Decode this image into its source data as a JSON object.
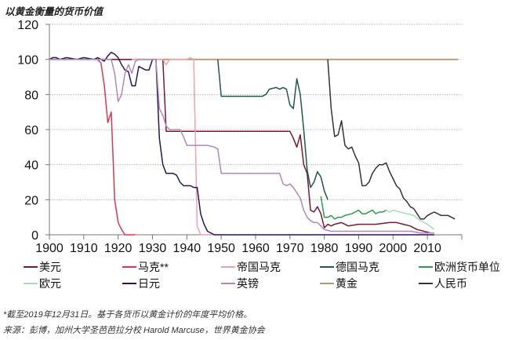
{
  "title": "以黄金衡量的货币价值",
  "notes": [
    "*截至2019年12月31日。基于各货币以黄金计价的年度平均价格。",
    "来源：彭博，加州大学圣芭芭拉分校 Harold Marcuse，世界黄金协会"
  ],
  "legend": [
    {
      "label": "美元",
      "color": "#7a1a2e"
    },
    {
      "label": "马克**",
      "color": "#d8384f"
    },
    {
      "label": "帝国马克",
      "color": "#eaa3ad"
    },
    {
      "label": "德国马克",
      "color": "#1e5a44"
    },
    {
      "label": "欧洲货币单位",
      "color": "#2e9e4e"
    },
    {
      "label": "欧元",
      "color": "#a8dcb4"
    },
    {
      "label": "日元",
      "color": "#2a1657"
    },
    {
      "label": "英镑",
      "color": "#b086c0"
    },
    {
      "label": "黄金",
      "color": "#b39a6a"
    },
    {
      "label": "人民币",
      "color": "#333333"
    }
  ],
  "chart_data": {
    "type": "line",
    "title": "以黄金衡量的货币价值",
    "xlabel": "",
    "ylabel": "",
    "xlim": [
      1900,
      2020
    ],
    "ylim": [
      0,
      120
    ],
    "xticks": [
      1900,
      1910,
      1920,
      1930,
      1940,
      1950,
      1960,
      1970,
      1980,
      1990,
      2000,
      2010
    ],
    "yticks": [
      0,
      20,
      40,
      60,
      80,
      100,
      120
    ],
    "grid": "horizontal dotted",
    "legend_position": "bottom",
    "series": [
      {
        "name": "黄金",
        "color": "#b39a6a",
        "points": [
          [
            1900,
            100
          ],
          [
            2019,
            100
          ]
        ]
      },
      {
        "name": "美元",
        "color": "#7a1a2e",
        "points": [
          [
            1900,
            100
          ],
          [
            1933,
            100
          ],
          [
            1934,
            59
          ],
          [
            1970,
            59
          ],
          [
            1971,
            55
          ],
          [
            1972,
            50
          ],
          [
            1973,
            57
          ],
          [
            1974,
            40
          ],
          [
            1975,
            35
          ],
          [
            1976,
            14
          ],
          [
            1977,
            13
          ],
          [
            1978,
            16
          ],
          [
            1979,
            12
          ],
          [
            1980,
            4
          ],
          [
            1981,
            6
          ],
          [
            1982,
            5
          ],
          [
            1983,
            6
          ],
          [
            1985,
            7
          ],
          [
            1987,
            5
          ],
          [
            1990,
            6
          ],
          [
            1995,
            6
          ],
          [
            1999,
            7
          ],
          [
            2001,
            7
          ],
          [
            2003,
            6
          ],
          [
            2005,
            5
          ],
          [
            2007,
            3
          ],
          [
            2009,
            2
          ],
          [
            2011,
            1
          ]
        ]
      },
      {
        "name": "马克**",
        "color": "#d8384f",
        "points": [
          [
            1900,
            100
          ],
          [
            1914,
            100
          ],
          [
            1915,
            98
          ],
          [
            1916,
            85
          ],
          [
            1917,
            64
          ],
          [
            1918,
            70
          ],
          [
            1919,
            20
          ],
          [
            1920,
            7
          ],
          [
            1921,
            3
          ],
          [
            1922,
            0
          ],
          [
            1925,
            0
          ]
        ]
      },
      {
        "name": "帝国马克",
        "color": "#eaa3ad",
        "points": [
          [
            1924,
            100
          ],
          [
            1933,
            100
          ],
          [
            1934,
            97
          ],
          [
            1935,
            100
          ],
          [
            1939,
            100
          ],
          [
            1940,
            100
          ],
          [
            1941,
            101
          ],
          [
            1942,
            100
          ],
          [
            1943,
            5
          ],
          [
            1944,
            0
          ],
          [
            1948,
            0
          ]
        ]
      },
      {
        "name": "德国马克",
        "color": "#1e5a44",
        "points": [
          [
            1949,
            100
          ],
          [
            1950,
            79
          ],
          [
            1962,
            79
          ],
          [
            1963,
            80
          ],
          [
            1964,
            83
          ],
          [
            1966,
            84
          ],
          [
            1967,
            83
          ],
          [
            1968,
            84
          ],
          [
            1969,
            83
          ],
          [
            1970,
            74
          ],
          [
            1971,
            72
          ],
          [
            1972,
            89
          ],
          [
            1973,
            80
          ],
          [
            1974,
            60
          ],
          [
            1975,
            37
          ],
          [
            1976,
            27
          ],
          [
            1977,
            30
          ],
          [
            1978,
            36
          ],
          [
            1979,
            33
          ],
          [
            1980,
            25
          ],
          [
            1981,
            20
          ]
        ]
      },
      {
        "name": "欧洲货币单位",
        "color": "#2e9e4e",
        "points": [
          [
            1979,
            22
          ],
          [
            1980,
            10
          ],
          [
            1981,
            10
          ],
          [
            1982,
            11
          ],
          [
            1983,
            9
          ],
          [
            1984,
            10
          ],
          [
            1985,
            10
          ],
          [
            1986,
            11
          ],
          [
            1988,
            12
          ],
          [
            1990,
            14
          ],
          [
            1991,
            12
          ],
          [
            1992,
            12
          ],
          [
            1994,
            14
          ],
          [
            1995,
            12
          ],
          [
            1996,
            13
          ],
          [
            1997,
            13
          ],
          [
            1998,
            14
          ]
        ]
      },
      {
        "name": "欧元",
        "color": "#a8dcb4",
        "points": [
          [
            1998,
            14
          ],
          [
            1999,
            13
          ],
          [
            2000,
            14
          ],
          [
            2002,
            13
          ],
          [
            2004,
            12
          ],
          [
            2006,
            11
          ],
          [
            2008,
            8
          ],
          [
            2010,
            6
          ],
          [
            2012,
            3
          ]
        ]
      },
      {
        "name": "日元",
        "color": "#2a1657",
        "points": [
          [
            1900,
            100
          ],
          [
            1901,
            101
          ],
          [
            1902,
            101
          ],
          [
            1903,
            100
          ],
          [
            1905,
            101
          ],
          [
            1908,
            100
          ],
          [
            1910,
            101
          ],
          [
            1913,
            100
          ],
          [
            1914,
            101
          ],
          [
            1915,
            100
          ],
          [
            1916,
            99
          ],
          [
            1917,
            102
          ],
          [
            1918,
            104
          ],
          [
            1919,
            103
          ],
          [
            1920,
            101
          ],
          [
            1921,
            97
          ],
          [
            1922,
            94
          ],
          [
            1923,
            93
          ],
          [
            1924,
            85
          ],
          [
            1925,
            85
          ],
          [
            1926,
            96
          ],
          [
            1927,
            95
          ],
          [
            1928,
            94
          ],
          [
            1929,
            94
          ],
          [
            1930,
            100
          ],
          [
            1931,
            100
          ],
          [
            1932,
            55
          ],
          [
            1933,
            40
          ],
          [
            1934,
            35
          ],
          [
            1936,
            35
          ],
          [
            1937,
            34
          ],
          [
            1938,
            30
          ],
          [
            1939,
            28
          ],
          [
            1941,
            28
          ],
          [
            1942,
            27
          ],
          [
            1943,
            27
          ],
          [
            1944,
            12
          ],
          [
            1945,
            6
          ],
          [
            1946,
            2
          ],
          [
            1948,
            0
          ],
          [
            2012,
            0
          ]
        ]
      },
      {
        "name": "英镑",
        "color": "#b086c0",
        "points": [
          [
            1900,
            100
          ],
          [
            1918,
            100
          ],
          [
            1919,
            92
          ],
          [
            1920,
            76
          ],
          [
            1921,
            80
          ],
          [
            1922,
            92
          ],
          [
            1923,
            97
          ],
          [
            1924,
            92
          ],
          [
            1925,
            99
          ],
          [
            1926,
            100
          ],
          [
            1931,
            100
          ],
          [
            1932,
            72
          ],
          [
            1933,
            68
          ],
          [
            1934,
            62
          ],
          [
            1935,
            60
          ],
          [
            1938,
            60
          ],
          [
            1939,
            56
          ],
          [
            1940,
            51
          ],
          [
            1945,
            51
          ],
          [
            1946,
            51
          ],
          [
            1948,
            50
          ],
          [
            1949,
            49
          ],
          [
            1950,
            35
          ],
          [
            1967,
            35
          ],
          [
            1968,
            29
          ],
          [
            1969,
            28
          ],
          [
            1970,
            29
          ],
          [
            1971,
            27
          ],
          [
            1972,
            24
          ],
          [
            1973,
            21
          ],
          [
            1974,
            14
          ],
          [
            1975,
            10
          ],
          [
            1976,
            8
          ],
          [
            1977,
            7
          ],
          [
            1978,
            7
          ],
          [
            1979,
            5
          ],
          [
            1980,
            3
          ],
          [
            1982,
            2
          ],
          [
            1990,
            2
          ],
          [
            2000,
            2
          ],
          [
            2005,
            2
          ],
          [
            2008,
            1
          ],
          [
            2012,
            1
          ]
        ]
      },
      {
        "name": "人民币",
        "color": "#333333",
        "points": [
          [
            1981,
            100
          ],
          [
            1982,
            72
          ],
          [
            1983,
            56
          ],
          [
            1984,
            57
          ],
          [
            1985,
            65
          ],
          [
            1986,
            51
          ],
          [
            1987,
            49
          ],
          [
            1988,
            50
          ],
          [
            1989,
            45
          ],
          [
            1990,
            41
          ],
          [
            1991,
            28
          ],
          [
            1992,
            28
          ],
          [
            1993,
            30
          ],
          [
            1994,
            35
          ],
          [
            1995,
            38
          ],
          [
            1996,
            40
          ],
          [
            1997,
            40
          ],
          [
            1998,
            41
          ],
          [
            1999,
            36
          ],
          [
            2000,
            32
          ],
          [
            2001,
            28
          ],
          [
            2002,
            26
          ],
          [
            2003,
            21
          ],
          [
            2004,
            19
          ],
          [
            2005,
            16
          ],
          [
            2006,
            15
          ],
          [
            2007,
            12
          ],
          [
            2008,
            9
          ],
          [
            2009,
            9
          ],
          [
            2010,
            11
          ],
          [
            2011,
            12
          ],
          [
            2012,
            13
          ],
          [
            2013,
            12
          ],
          [
            2014,
            11
          ],
          [
            2015,
            11
          ],
          [
            2016,
            11
          ],
          [
            2017,
            10
          ],
          [
            2018,
            9
          ]
        ]
      }
    ]
  }
}
